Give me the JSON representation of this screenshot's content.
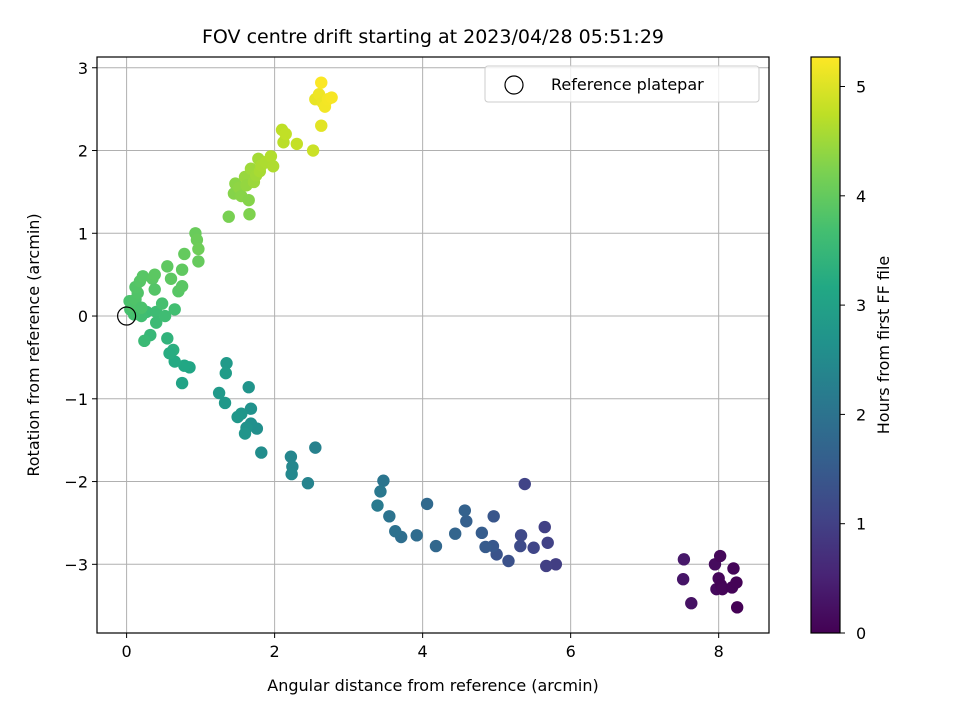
{
  "chart_data": {
    "type": "scatter",
    "title": "FOV centre drift starting at 2023/04/28 05:51:29",
    "xlabel": "Angular distance from reference (arcmin)",
    "ylabel": "Rotation from reference (arcmin)",
    "xlim": [
      -0.4,
      8.68
    ],
    "ylim": [
      -3.83,
      3.13
    ],
    "x_ticks": [
      0,
      2,
      4,
      6,
      8
    ],
    "y_ticks": [
      -3,
      -2,
      -1,
      0,
      1,
      2,
      3
    ],
    "grid": true,
    "legend": {
      "placement": "upper right",
      "entries": [
        "Reference platepar"
      ]
    },
    "reference_point": {
      "x": 0,
      "y": 0,
      "marker": "open-circle"
    },
    "colorbar": {
      "label": "Hours from first FF file",
      "colormap": "viridis",
      "range": [
        0,
        5.27
      ],
      "ticks": [
        0,
        1,
        2,
        3,
        4,
        5
      ]
    },
    "points": [
      {
        "x": 7.53,
        "y": -2.94,
        "t": 0.35
      },
      {
        "x": 7.52,
        "y": -3.18,
        "t": 0.3
      },
      {
        "x": 7.63,
        "y": -3.47,
        "t": 0.25
      },
      {
        "x": 7.95,
        "y": -3.0,
        "t": 0.15
      },
      {
        "x": 8.02,
        "y": -2.9,
        "t": 0.1
      },
      {
        "x": 7.97,
        "y": -3.3,
        "t": 0.12
      },
      {
        "x": 8.0,
        "y": -3.17,
        "t": 0.08
      },
      {
        "x": 8.03,
        "y": -3.25,
        "t": 0.05
      },
      {
        "x": 8.05,
        "y": -3.3,
        "t": 0.07
      },
      {
        "x": 8.18,
        "y": -3.28,
        "t": 0.04
      },
      {
        "x": 8.2,
        "y": -3.05,
        "t": 0.06
      },
      {
        "x": 8.24,
        "y": -3.22,
        "t": 0.03
      },
      {
        "x": 8.25,
        "y": -3.52,
        "t": 0.02
      },
      {
        "x": 5.38,
        "y": -2.03,
        "t": 1.05
      },
      {
        "x": 5.65,
        "y": -2.55,
        "t": 1.0
      },
      {
        "x": 5.8,
        "y": -3.0,
        "t": 0.95
      },
      {
        "x": 5.67,
        "y": -3.02,
        "t": 0.98
      },
      {
        "x": 5.69,
        "y": -2.74,
        "t": 1.02
      },
      {
        "x": 5.5,
        "y": -2.8,
        "t": 1.1
      },
      {
        "x": 5.33,
        "y": -2.65,
        "t": 1.15
      },
      {
        "x": 5.32,
        "y": -2.78,
        "t": 1.2
      },
      {
        "x": 5.16,
        "y": -2.96,
        "t": 1.3
      },
      {
        "x": 5.0,
        "y": -2.88,
        "t": 1.35
      },
      {
        "x": 4.96,
        "y": -2.42,
        "t": 1.4
      },
      {
        "x": 4.95,
        "y": -2.78,
        "t": 1.45
      },
      {
        "x": 4.85,
        "y": -2.79,
        "t": 1.5
      },
      {
        "x": 4.8,
        "y": -2.62,
        "t": 1.55
      },
      {
        "x": 4.59,
        "y": -2.48,
        "t": 1.6
      },
      {
        "x": 4.57,
        "y": -2.35,
        "t": 1.65
      },
      {
        "x": 4.44,
        "y": -2.63,
        "t": 1.7
      },
      {
        "x": 4.18,
        "y": -2.78,
        "t": 1.75
      },
      {
        "x": 4.06,
        "y": -2.27,
        "t": 1.8
      },
      {
        "x": 3.92,
        "y": -2.65,
        "t": 1.85
      },
      {
        "x": 3.71,
        "y": -2.67,
        "t": 1.9
      },
      {
        "x": 3.63,
        "y": -2.6,
        "t": 1.95
      },
      {
        "x": 3.55,
        "y": -2.42,
        "t": 2.0
      },
      {
        "x": 3.47,
        "y": -1.99,
        "t": 2.05
      },
      {
        "x": 3.43,
        "y": -2.12,
        "t": 2.1
      },
      {
        "x": 3.39,
        "y": -2.29,
        "t": 2.15
      },
      {
        "x": 2.55,
        "y": -1.59,
        "t": 2.3
      },
      {
        "x": 2.45,
        "y": -2.02,
        "t": 2.35
      },
      {
        "x": 2.22,
        "y": -1.7,
        "t": 2.4
      },
      {
        "x": 2.24,
        "y": -1.82,
        "t": 2.42
      },
      {
        "x": 2.23,
        "y": -1.91,
        "t": 2.45
      },
      {
        "x": 1.82,
        "y": -1.65,
        "t": 2.55
      },
      {
        "x": 1.76,
        "y": -1.36,
        "t": 2.6
      },
      {
        "x": 1.68,
        "y": -1.3,
        "t": 2.62
      },
      {
        "x": 1.68,
        "y": -1.12,
        "t": 2.65
      },
      {
        "x": 1.65,
        "y": -0.86,
        "t": 2.7
      },
      {
        "x": 1.62,
        "y": -1.35,
        "t": 2.68
      },
      {
        "x": 1.6,
        "y": -1.42,
        "t": 2.72
      },
      {
        "x": 1.55,
        "y": -1.18,
        "t": 2.75
      },
      {
        "x": 1.5,
        "y": -1.22,
        "t": 2.78
      },
      {
        "x": 1.35,
        "y": -0.57,
        "t": 2.85
      },
      {
        "x": 1.34,
        "y": -0.69,
        "t": 2.88
      },
      {
        "x": 1.33,
        "y": -1.05,
        "t": 2.8
      },
      {
        "x": 1.25,
        "y": -0.93,
        "t": 2.82
      },
      {
        "x": 0.85,
        "y": -0.62,
        "t": 3.1
      },
      {
        "x": 0.78,
        "y": -0.6,
        "t": 3.15
      },
      {
        "x": 0.75,
        "y": -0.81,
        "t": 3.05
      },
      {
        "x": 0.65,
        "y": -0.55,
        "t": 3.2
      },
      {
        "x": 0.63,
        "y": -0.41,
        "t": 3.3
      },
      {
        "x": 0.58,
        "y": -0.45,
        "t": 3.25
      },
      {
        "x": 0.55,
        "y": -0.27,
        "t": 3.4
      },
      {
        "x": 0.32,
        "y": -0.23,
        "t": 3.5
      },
      {
        "x": 0.24,
        "y": -0.3,
        "t": 3.55
      },
      {
        "x": 0.27,
        "y": 0.05,
        "t": 3.6
      },
      {
        "x": 0.2,
        "y": 0.0,
        "t": 3.65
      },
      {
        "x": 0.1,
        "y": 0.02,
        "t": 3.7
      },
      {
        "x": 0.05,
        "y": 0.08,
        "t": 3.72
      },
      {
        "x": 0.04,
        "y": 0.18,
        "t": 3.75
      },
      {
        "x": 0.08,
        "y": 0.12,
        "t": 3.78
      },
      {
        "x": 0.12,
        "y": 0.2,
        "t": 3.8
      },
      {
        "x": 0.15,
        "y": 0.28,
        "t": 3.82
      },
      {
        "x": 0.12,
        "y": 0.35,
        "t": 3.84
      },
      {
        "x": 0.18,
        "y": 0.42,
        "t": 3.86
      },
      {
        "x": 0.22,
        "y": 0.48,
        "t": 3.88
      },
      {
        "x": 0.2,
        "y": 0.1,
        "t": 3.76
      },
      {
        "x": 0.35,
        "y": 0.45,
        "t": 3.9
      },
      {
        "x": 0.38,
        "y": 0.5,
        "t": 3.92
      },
      {
        "x": 0.38,
        "y": 0.32,
        "t": 3.85
      },
      {
        "x": 0.4,
        "y": 0.05,
        "t": 3.6
      },
      {
        "x": 0.4,
        "y": -0.08,
        "t": 3.58
      },
      {
        "x": 0.48,
        "y": 0.15,
        "t": 3.7
      },
      {
        "x": 0.52,
        "y": 0.0,
        "t": 3.62
      },
      {
        "x": 0.55,
        "y": 0.6,
        "t": 3.95
      },
      {
        "x": 0.6,
        "y": 0.45,
        "t": 3.93
      },
      {
        "x": 0.65,
        "y": 0.08,
        "t": 3.66
      },
      {
        "x": 0.7,
        "y": 0.3,
        "t": 3.88
      },
      {
        "x": 0.75,
        "y": 0.36,
        "t": 3.9
      },
      {
        "x": 0.75,
        "y": 0.56,
        "t": 3.96
      },
      {
        "x": 0.78,
        "y": 0.75,
        "t": 4.0
      },
      {
        "x": 0.93,
        "y": 1.0,
        "t": 4.05
      },
      {
        "x": 0.95,
        "y": 0.92,
        "t": 4.08
      },
      {
        "x": 0.97,
        "y": 0.81,
        "t": 4.1
      },
      {
        "x": 0.97,
        "y": 0.66,
        "t": 4.02
      },
      {
        "x": 1.38,
        "y": 1.2,
        "t": 4.2
      },
      {
        "x": 1.45,
        "y": 1.48,
        "t": 4.3
      },
      {
        "x": 1.47,
        "y": 1.6,
        "t": 4.35
      },
      {
        "x": 1.52,
        "y": 1.55,
        "t": 4.38
      },
      {
        "x": 1.55,
        "y": 1.45,
        "t": 4.33
      },
      {
        "x": 1.6,
        "y": 1.68,
        "t": 4.45
      },
      {
        "x": 1.62,
        "y": 1.58,
        "t": 4.42
      },
      {
        "x": 1.65,
        "y": 1.4,
        "t": 4.3
      },
      {
        "x": 1.66,
        "y": 1.23,
        "t": 4.25
      },
      {
        "x": 1.68,
        "y": 1.78,
        "t": 4.5
      },
      {
        "x": 1.72,
        "y": 1.62,
        "t": 4.48
      },
      {
        "x": 1.75,
        "y": 1.7,
        "t": 4.52
      },
      {
        "x": 1.78,
        "y": 1.9,
        "t": 4.55
      },
      {
        "x": 1.8,
        "y": 1.75,
        "t": 4.58
      },
      {
        "x": 1.82,
        "y": 1.82,
        "t": 4.6
      },
      {
        "x": 1.88,
        "y": 1.86,
        "t": 4.62
      },
      {
        "x": 1.95,
        "y": 1.93,
        "t": 4.65
      },
      {
        "x": 1.98,
        "y": 1.81,
        "t": 4.63
      },
      {
        "x": 2.1,
        "y": 2.25,
        "t": 4.75
      },
      {
        "x": 2.12,
        "y": 2.1,
        "t": 4.72
      },
      {
        "x": 2.15,
        "y": 2.2,
        "t": 4.78
      },
      {
        "x": 2.3,
        "y": 2.08,
        "t": 4.8
      },
      {
        "x": 2.52,
        "y": 2.0,
        "t": 4.85
      },
      {
        "x": 2.55,
        "y": 2.62,
        "t": 5.1
      },
      {
        "x": 2.6,
        "y": 2.68,
        "t": 5.15
      },
      {
        "x": 2.63,
        "y": 2.82,
        "t": 5.25
      },
      {
        "x": 2.65,
        "y": 2.58,
        "t": 5.12
      },
      {
        "x": 2.68,
        "y": 2.53,
        "t": 5.18
      },
      {
        "x": 2.72,
        "y": 2.62,
        "t": 5.2
      },
      {
        "x": 2.77,
        "y": 2.64,
        "t": 5.22
      },
      {
        "x": 2.63,
        "y": 2.3,
        "t": 5.05
      }
    ]
  }
}
